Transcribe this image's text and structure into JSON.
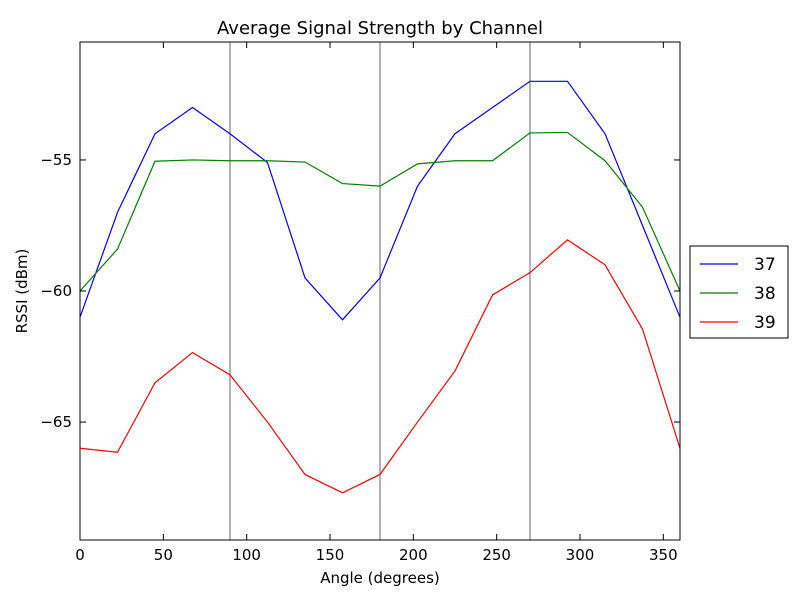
{
  "chart_data": {
    "type": "line",
    "title": "Average Signal Strength by Channel",
    "xlabel": "Angle (degrees)",
    "ylabel": "RSSI (dBm)",
    "xlim": [
      0,
      360
    ],
    "ylim": [
      -69.5,
      -50.5
    ],
    "xticks": [
      0,
      50,
      100,
      150,
      200,
      250,
      300,
      350
    ],
    "yticks": [
      -55,
      -60,
      -65
    ],
    "ytick_labels": [
      "−55",
      "−60",
      "−65"
    ],
    "grid": false,
    "vlines": [
      90,
      180,
      270
    ],
    "legend_position": "right",
    "x": [
      0,
      22.5,
      45,
      67.5,
      90,
      112.5,
      135,
      157.5,
      180,
      202.5,
      225,
      247.5,
      270,
      292.5,
      315,
      337.5,
      360
    ],
    "series": [
      {
        "name": "37",
        "color": "#0000ff",
        "values": [
          -61,
          -57,
          -54,
          -53,
          -54,
          -55.1,
          -59.5,
          -61.1,
          -59.5,
          -56,
          -54,
          -53,
          -52,
          -52,
          -54,
          -57.5,
          -61
        ]
      },
      {
        "name": "38",
        "color": "#008000",
        "values": [
          -60,
          -58.4,
          -55.05,
          -55,
          -55.03,
          -55.03,
          -55.08,
          -55.9,
          -56,
          -55.15,
          -55.03,
          -55.03,
          -53.97,
          -53.95,
          -55.03,
          -56.8,
          -60
        ]
      },
      {
        "name": "39",
        "color": "#ff0000",
        "values": [
          -66,
          -66.15,
          -63.5,
          -62.35,
          -63.2,
          -65,
          -67,
          -67.7,
          -67,
          -65,
          -63.05,
          -60.15,
          -59.3,
          -58.05,
          -59,
          -61.45,
          -66
        ]
      }
    ]
  }
}
